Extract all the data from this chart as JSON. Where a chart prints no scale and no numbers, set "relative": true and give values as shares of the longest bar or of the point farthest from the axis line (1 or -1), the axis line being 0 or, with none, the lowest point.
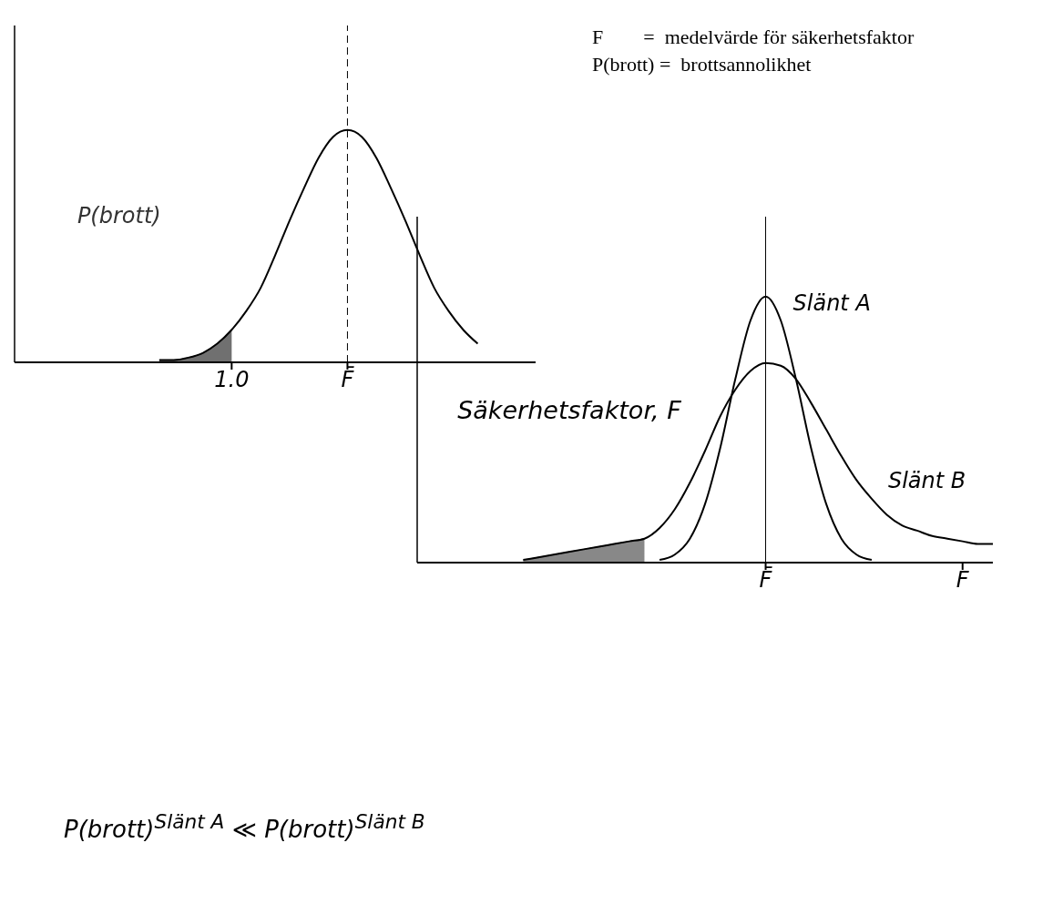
{
  "chart_data": [
    {
      "type": "line",
      "relative": true,
      "tick_labels": "x",
      "xlabel": "Säkerhetsfaktor, F",
      "categories": [
        null,
        null,
        null,
        null,
        null,
        null,
        null,
        null,
        null,
        null,
        null,
        null,
        null,
        null,
        null,
        "1.0",
        null,
        null,
        null,
        null,
        null,
        null,
        null,
        "F̄",
        null,
        null,
        null,
        null,
        null,
        null,
        null,
        null,
        null,
        null,
        null,
        null,
        null
      ],
      "series": [
        {
          "type": "area",
          "name": "P(brott)",
          "color": "#333333",
          "values": [
            null,
            null,
            null,
            null,
            null,
            null,
            null,
            null,
            null,
            null,
            0.01,
            0.01,
            0.02,
            0.04,
            0.08,
            0.14,
            null,
            null,
            null,
            null,
            null,
            null,
            null,
            null,
            null,
            null,
            null,
            null,
            null,
            null,
            null,
            null,
            null,
            null,
            null,
            null,
            null
          ]
        },
        {
          "color": "#000000",
          "values": [
            null,
            null,
            null,
            null,
            null,
            null,
            null,
            null,
            null,
            null,
            0.01,
            0.01,
            0.02,
            0.04,
            0.08,
            0.14,
            0.22,
            0.32,
            0.46,
            0.61,
            0.75,
            0.88,
            0.97,
            1,
            0.97,
            0.88,
            0.75,
            0.61,
            0.46,
            0.32,
            0.22,
            0.14,
            0.08,
            null,
            null,
            null,
            null
          ]
        }
      ],
      "ref_lines": [
        {
          "axis": "x",
          "value": "F̄",
          "line_style": "dashed"
        }
      ],
      "annotations": [
        "F        =  medelvärde för säkerhetsfaktor",
        "P(brott) =  brottsannolikhet"
      ]
    },
    {
      "type": "line",
      "relative": true,
      "tick_labels": "x",
      "categories": [
        null,
        null,
        null,
        null,
        null,
        null,
        null,
        null,
        null,
        null,
        null,
        null,
        null,
        null,
        null,
        null,
        null,
        null,
        null,
        null,
        null,
        null,
        null,
        "F̄",
        null,
        null,
        null,
        null,
        null,
        null,
        null,
        null,
        null,
        null,
        null,
        null,
        "F",
        null,
        null
      ],
      "series": [
        {
          "type": "area",
          "color": "#555555",
          "values": [
            null,
            null,
            null,
            null,
            null,
            null,
            null,
            0.01,
            0.02,
            0.03,
            0.04,
            0.05,
            0.06,
            0.07,
            0.08,
            0.09,
            null,
            null,
            null,
            null,
            null,
            null,
            null,
            null,
            null,
            null,
            null,
            null,
            null,
            null,
            null,
            null,
            null,
            null,
            null,
            null,
            null,
            null,
            null
          ]
        },
        {
          "name": "Slänt A",
          "color": "#000000",
          "values": [
            null,
            null,
            null,
            null,
            null,
            null,
            null,
            null,
            null,
            null,
            null,
            null,
            null,
            null,
            null,
            null,
            0.01,
            0.03,
            0.09,
            0.22,
            0.43,
            0.69,
            0.91,
            1,
            0.91,
            0.69,
            0.43,
            0.22,
            0.09,
            0.03,
            0.01,
            null,
            null,
            null,
            null,
            null,
            null,
            null,
            null
          ]
        },
        {
          "name": "Slänt B",
          "color": "#000000",
          "values": [
            null,
            null,
            null,
            null,
            null,
            null,
            null,
            0.01,
            0.02,
            0.03,
            0.04,
            0.05,
            0.06,
            0.07,
            0.08,
            0.09,
            0.13,
            0.2,
            0.3,
            0.42,
            0.55,
            0.65,
            0.72,
            0.75,
            0.74,
            0.69,
            0.6,
            0.5,
            0.4,
            0.31,
            0.24,
            0.18,
            0.14,
            0.12,
            0.1,
            0.09,
            0.08,
            0.07,
            0.07
          ]
        }
      ],
      "ref_lines": [
        {
          "axis": "x",
          "value": "F̄",
          "line_style": "solid"
        }
      ],
      "annotations": [
        "P(brott)$^{Slänt A}$ ≪ P(brott)$^{Slänt B}$"
      ]
    }
  ]
}
